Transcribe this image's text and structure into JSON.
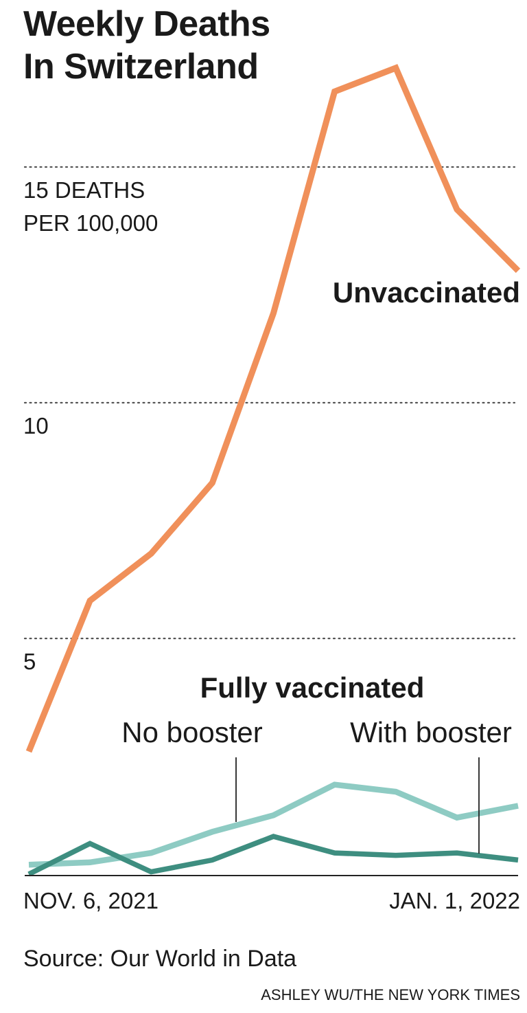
{
  "title_line1": "Weekly Deaths",
  "title_line2": "In Switzerland",
  "source": "Source: Our World in Data",
  "credit": "ASHLEY WU/THE NEW YORK TIMES",
  "colors": {
    "unvaccinated": "#F0905A",
    "no_booster": "#8ECBC3",
    "with_booster": "#3E8E80",
    "grid": "#555555",
    "axis": "#222222"
  },
  "chart_data": {
    "type": "line",
    "title": "Weekly Deaths In Switzerland",
    "ylabel": "DEATHS PER 100,000",
    "ylim": [
      0,
      18
    ],
    "yticks": [
      5,
      10,
      15
    ],
    "ytick_labels": [
      "5",
      "10",
      "15 DEATHS"
    ],
    "ytick_unit_line": "PER 100,000",
    "x": [
      "2021-11-06",
      "2021-11-13",
      "2021-11-20",
      "2021-11-27",
      "2021-12-04",
      "2021-12-11",
      "2021-12-18",
      "2021-12-25",
      "2022-01-01"
    ],
    "x_tick_labels": [
      "NOV. 6, 2021",
      "JAN. 1, 2022"
    ],
    "group_label": "Fully vaccinated",
    "series": [
      {
        "name": "Unvaccinated",
        "values": [
          2.6,
          5.8,
          6.8,
          8.3,
          11.9,
          16.6,
          17.1,
          14.1,
          12.8
        ]
      },
      {
        "name": "No booster",
        "values": [
          0.2,
          0.25,
          0.45,
          0.9,
          1.25,
          1.9,
          1.75,
          1.2,
          1.45
        ]
      },
      {
        "name": "With booster",
        "values": [
          0.0,
          0.65,
          0.05,
          0.3,
          0.8,
          0.45,
          0.4,
          0.45,
          0.3
        ]
      }
    ],
    "grid": true
  }
}
